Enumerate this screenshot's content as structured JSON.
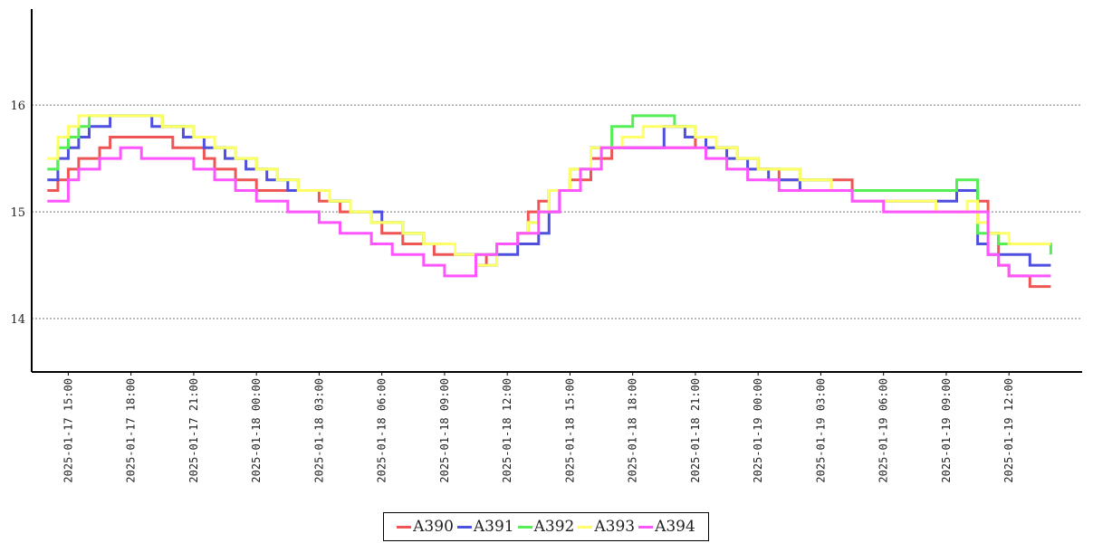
{
  "chart_data": {
    "type": "line",
    "title": "",
    "xlabel": "",
    "ylabel": "",
    "ylim": [
      13.5,
      16.9
    ],
    "xlim": [
      "2025-01-17 13:15",
      "2025-01-19 15:30"
    ],
    "y_ticks": [
      14,
      15,
      16
    ],
    "x_ticks": [
      "2025-01-17 15:00",
      "2025-01-17 18:00",
      "2025-01-17 21:00",
      "2025-01-18 00:00",
      "2025-01-18 03:00",
      "2025-01-18 06:00",
      "2025-01-18 09:00",
      "2025-01-18 12:00",
      "2025-01-18 15:00",
      "2025-01-18 18:00",
      "2025-01-18 21:00",
      "2025-01-19 00:00",
      "2025-01-19 03:00",
      "2025-01-19 06:00",
      "2025-01-19 09:00",
      "2025-01-19 12:00"
    ],
    "grid": {
      "horizontal": true,
      "style": "dotted"
    },
    "legend_position": "bottom-center",
    "series": [
      {
        "name": "A390",
        "color": "#ee5555",
        "x": [
          "2025-01-17 14:00",
          "2025-01-17 14:30",
          "2025-01-17 15:00",
          "2025-01-17 15:30",
          "2025-01-17 16:30",
          "2025-01-17 17:00",
          "2025-01-17 18:00",
          "2025-01-17 20:00",
          "2025-01-17 21:30",
          "2025-01-17 22:00",
          "2025-01-17 23:00",
          "2025-01-18 00:00",
          "2025-01-18 01:30",
          "2025-01-18 03:00",
          "2025-01-18 04:00",
          "2025-01-18 05:30",
          "2025-01-18 06:00",
          "2025-01-18 07:00",
          "2025-01-18 08:30",
          "2025-01-18 10:30",
          "2025-01-18 11:00",
          "2025-01-18 11:30",
          "2025-01-18 12:30",
          "2025-01-18 13:00",
          "2025-01-18 13:30",
          "2025-01-18 14:00",
          "2025-01-18 15:00",
          "2025-01-18 16:00",
          "2025-01-18 17:00",
          "2025-01-18 21:00",
          "2025-01-18 22:00",
          "2025-01-18 23:00",
          "2025-01-19 00:00",
          "2025-01-19 01:00",
          "2025-01-19 04:30",
          "2025-01-19 06:00",
          "2025-01-19 10:30",
          "2025-01-19 11:00",
          "2025-01-19 11:30",
          "2025-01-19 12:00",
          "2025-01-19 13:00",
          "2025-01-19 14:00"
        ],
        "y": [
          15.2,
          15.3,
          15.4,
          15.5,
          15.6,
          15.7,
          15.7,
          15.6,
          15.5,
          15.4,
          15.3,
          15.2,
          15.2,
          15.1,
          15.0,
          14.9,
          14.8,
          14.7,
          14.6,
          14.5,
          14.6,
          14.7,
          14.8,
          15.0,
          15.1,
          15.2,
          15.3,
          15.5,
          15.6,
          15.7,
          15.6,
          15.5,
          15.4,
          15.3,
          15.2,
          15.2,
          15.1,
          14.8,
          14.5,
          14.4,
          14.3,
          14.3
        ]
      },
      {
        "name": "A391",
        "color": "#4f4fe0",
        "x": [
          "2025-01-17 14:00",
          "2025-01-17 14:30",
          "2025-01-17 15:00",
          "2025-01-17 15:30",
          "2025-01-17 16:00",
          "2025-01-17 17:00",
          "2025-01-17 19:00",
          "2025-01-17 20:30",
          "2025-01-17 21:30",
          "2025-01-17 22:30",
          "2025-01-17 23:30",
          "2025-01-18 00:30",
          "2025-01-18 01:30",
          "2025-01-18 03:30",
          "2025-01-18 04:30",
          "2025-01-18 06:00",
          "2025-01-18 07:00",
          "2025-01-18 08:00",
          "2025-01-18 09:30",
          "2025-01-18 10:30",
          "2025-01-18 11:30",
          "2025-01-18 12:30",
          "2025-01-18 13:30",
          "2025-01-18 14:00",
          "2025-01-18 14:30",
          "2025-01-18 15:30",
          "2025-01-18 16:00",
          "2025-01-18 19:30",
          "2025-01-18 20:30",
          "2025-01-18 21:30",
          "2025-01-18 22:30",
          "2025-01-18 23:30",
          "2025-01-19 00:30",
          "2025-01-19 02:00",
          "2025-01-19 04:30",
          "2025-01-19 09:30",
          "2025-01-19 10:30",
          "2025-01-19 11:00",
          "2025-01-19 12:00",
          "2025-01-19 13:00",
          "2025-01-19 14:00"
        ],
        "y": [
          15.3,
          15.5,
          15.6,
          15.7,
          15.8,
          15.9,
          15.8,
          15.7,
          15.6,
          15.5,
          15.4,
          15.3,
          15.2,
          15.1,
          15.0,
          14.9,
          14.8,
          14.7,
          14.6,
          14.5,
          14.6,
          14.7,
          14.8,
          15.0,
          15.2,
          15.4,
          15.6,
          15.8,
          15.7,
          15.6,
          15.5,
          15.4,
          15.3,
          15.2,
          15.1,
          15.2,
          14.7,
          14.6,
          14.6,
          14.5,
          14.5
        ]
      },
      {
        "name": "A392",
        "color": "#55ee55",
        "x": [
          "2025-01-17 14:00",
          "2025-01-17 14:30",
          "2025-01-17 15:00",
          "2025-01-17 15:30",
          "2025-01-17 16:00",
          "2025-01-17 17:30",
          "2025-01-17 19:30",
          "2025-01-17 21:00",
          "2025-01-17 22:00",
          "2025-01-17 23:00",
          "2025-01-18 00:00",
          "2025-01-18 01:00",
          "2025-01-18 02:00",
          "2025-01-18 03:30",
          "2025-01-18 04:30",
          "2025-01-18 05:30",
          "2025-01-18 07:00",
          "2025-01-18 08:00",
          "2025-01-18 09:30",
          "2025-01-18 10:30",
          "2025-01-18 11:30",
          "2025-01-18 12:30",
          "2025-01-18 13:00",
          "2025-01-18 13:30",
          "2025-01-18 14:00",
          "2025-01-18 15:00",
          "2025-01-18 16:00",
          "2025-01-18 17:00",
          "2025-01-18 18:00",
          "2025-01-18 20:00",
          "2025-01-18 21:00",
          "2025-01-18 22:00",
          "2025-01-18 23:00",
          "2025-01-19 00:00",
          "2025-01-19 02:00",
          "2025-01-19 03:30",
          "2025-01-19 04:30",
          "2025-01-19 09:30",
          "2025-01-19 10:30",
          "2025-01-19 11:30",
          "2025-01-19 14:00"
        ],
        "y": [
          15.4,
          15.6,
          15.7,
          15.8,
          15.9,
          15.9,
          15.8,
          15.7,
          15.6,
          15.5,
          15.4,
          15.3,
          15.2,
          15.1,
          15.0,
          14.9,
          14.8,
          14.7,
          14.6,
          14.6,
          14.7,
          14.8,
          14.9,
          15.0,
          15.2,
          15.4,
          15.6,
          15.8,
          15.9,
          15.8,
          15.7,
          15.6,
          15.5,
          15.4,
          15.3,
          15.2,
          15.2,
          15.3,
          14.8,
          14.7,
          14.6
        ]
      },
      {
        "name": "A393",
        "color": "#ffff66",
        "x": [
          "2025-01-17 14:00",
          "2025-01-17 14:30",
          "2025-01-17 15:00",
          "2025-01-17 15:30",
          "2025-01-17 16:00",
          "2025-01-17 17:30",
          "2025-01-17 19:30",
          "2025-01-17 21:00",
          "2025-01-17 22:00",
          "2025-01-17 23:00",
          "2025-01-18 00:00",
          "2025-01-18 01:00",
          "2025-01-18 02:00",
          "2025-01-18 03:30",
          "2025-01-18 04:30",
          "2025-01-18 05:30",
          "2025-01-18 07:00",
          "2025-01-18 08:00",
          "2025-01-18 09:30",
          "2025-01-18 10:30",
          "2025-01-18 11:30",
          "2025-01-18 12:30",
          "2025-01-18 13:00",
          "2025-01-18 13:30",
          "2025-01-18 14:00",
          "2025-01-18 15:00",
          "2025-01-18 16:00",
          "2025-01-18 17:30",
          "2025-01-18 18:30",
          "2025-01-18 20:00",
          "2025-01-18 21:00",
          "2025-01-18 22:00",
          "2025-01-18 23:00",
          "2025-01-19 00:00",
          "2025-01-19 02:00",
          "2025-01-19 03:30",
          "2025-01-19 04:30",
          "2025-01-19 08:30",
          "2025-01-19 10:00",
          "2025-01-19 10:30",
          "2025-01-19 11:00",
          "2025-01-19 12:00",
          "2025-01-19 14:00"
        ],
        "y": [
          15.5,
          15.7,
          15.8,
          15.9,
          15.9,
          15.9,
          15.8,
          15.7,
          15.6,
          15.5,
          15.4,
          15.3,
          15.2,
          15.1,
          15.0,
          14.9,
          14.8,
          14.7,
          14.6,
          14.5,
          14.7,
          14.8,
          14.9,
          15.0,
          15.2,
          15.4,
          15.6,
          15.7,
          15.8,
          15.8,
          15.7,
          15.6,
          15.5,
          15.4,
          15.3,
          15.2,
          15.1,
          15.0,
          15.1,
          14.9,
          14.8,
          14.7,
          14.7
        ]
      },
      {
        "name": "A394",
        "color": "#ff55ff",
        "x": [
          "2025-01-17 14:00",
          "2025-01-17 15:00",
          "2025-01-17 15:30",
          "2025-01-17 16:30",
          "2025-01-17 17:30",
          "2025-01-17 18:30",
          "2025-01-17 21:00",
          "2025-01-17 22:00",
          "2025-01-17 23:00",
          "2025-01-18 00:00",
          "2025-01-18 01:30",
          "2025-01-18 03:00",
          "2025-01-18 04:00",
          "2025-01-18 05:30",
          "2025-01-18 06:30",
          "2025-01-18 08:00",
          "2025-01-18 09:00",
          "2025-01-18 10:30",
          "2025-01-18 11:30",
          "2025-01-18 12:30",
          "2025-01-18 13:30",
          "2025-01-18 14:30",
          "2025-01-18 15:30",
          "2025-01-18 16:30",
          "2025-01-18 19:30",
          "2025-01-18 21:30",
          "2025-01-18 22:30",
          "2025-01-18 23:30",
          "2025-01-19 01:00",
          "2025-01-19 04:30",
          "2025-01-19 06:00",
          "2025-01-19 10:30",
          "2025-01-19 11:00",
          "2025-01-19 11:30",
          "2025-01-19 12:00",
          "2025-01-19 13:00",
          "2025-01-19 14:00"
        ],
        "y": [
          15.1,
          15.3,
          15.4,
          15.5,
          15.6,
          15.5,
          15.4,
          15.3,
          15.2,
          15.1,
          15.0,
          14.9,
          14.8,
          14.7,
          14.6,
          14.5,
          14.4,
          14.6,
          14.7,
          14.8,
          15.0,
          15.2,
          15.4,
          15.6,
          15.6,
          15.5,
          15.4,
          15.3,
          15.2,
          15.1,
          15.0,
          15.0,
          14.6,
          14.5,
          14.4,
          14.4,
          14.4
        ]
      }
    ]
  }
}
